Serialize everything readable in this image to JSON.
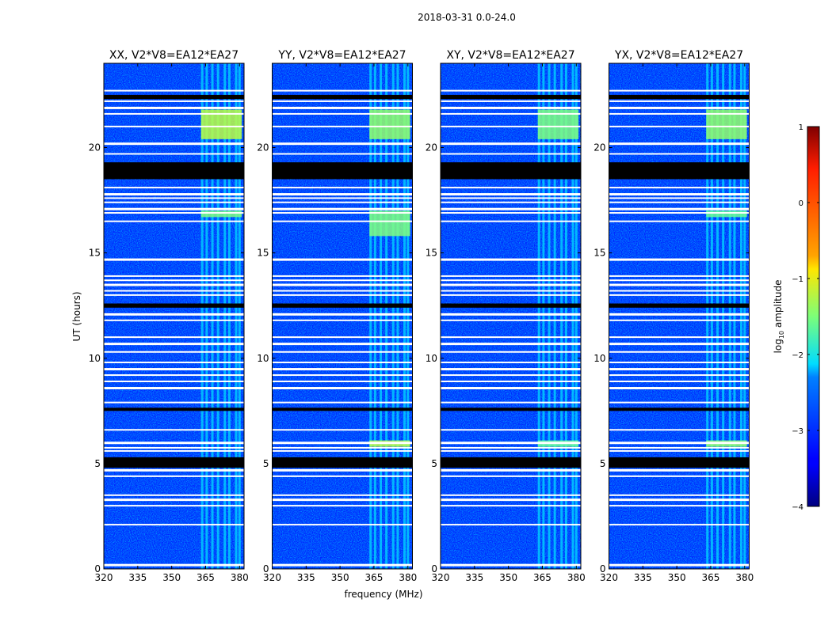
{
  "chart_data": {
    "type": "heatmap",
    "suptitle": "2018-03-31 0.0-24.0",
    "xlabel": "frequency (MHz)",
    "ylabel": "UT (hours)",
    "xlim": [
      320,
      382
    ],
    "ylim": [
      0,
      24
    ],
    "xticks": [
      320,
      335,
      350,
      365,
      380
    ],
    "yticks": [
      0,
      5,
      10,
      15,
      20
    ],
    "panels": [
      {
        "title": "XX, V2*V8=EA12*EA27",
        "pol": "XX"
      },
      {
        "title": "YY, V2*V8=EA12*EA27",
        "pol": "YY"
      },
      {
        "title": "XY, V2*V8=EA12*EA27",
        "pol": "XY"
      },
      {
        "title": "YX, V2*V8=EA12*EA27",
        "pol": "YX"
      }
    ],
    "colorbar": {
      "label": "log10 amplitude",
      "label_base": "log",
      "label_sub": "10",
      "label_rest": " amplitude",
      "vmin": -4,
      "vmax": 1,
      "ticks": [
        -4,
        -3,
        -2,
        -1,
        0,
        1
      ],
      "cmap": "jet"
    },
    "background_level": -3.2,
    "flagged_blocks_ut": [
      [
        4.8,
        5.3
      ],
      [
        7.5,
        7.65
      ],
      [
        12.4,
        12.6
      ],
      [
        18.5,
        19.3
      ],
      [
        22.3,
        22.5
      ]
    ],
    "flagged_lines_ut": [
      0.2,
      2.1,
      3.0,
      3.3,
      3.5,
      4.4,
      4.7,
      5.6,
      5.75,
      6.0,
      6.6,
      7.9,
      8.6,
      8.9,
      9.2,
      9.5,
      9.8,
      10.3,
      10.7,
      11.0,
      11.8,
      12.1,
      13.0,
      13.2,
      13.5,
      13.7,
      13.9,
      14.7,
      16.5,
      16.9,
      17.1,
      17.4,
      17.6,
      17.8,
      18.1,
      19.7,
      20.2,
      21.0,
      21.6,
      21.9,
      22.2,
      22.7
    ],
    "rfi_channels_mhz": [
      363.5,
      365.5,
      368,
      370.5,
      373.5,
      375.5,
      378.5,
      380
    ],
    "rfi_hotspots": [
      {
        "pol": "XX",
        "mhz": [
          363,
          381
        ],
        "ut": [
          20.4,
          21.8
        ],
        "level": -1.2
      },
      {
        "pol": "XX",
        "mhz": [
          363,
          381
        ],
        "ut": [
          16.7,
          17.0
        ],
        "level": -1.5
      },
      {
        "pol": "YY",
        "mhz": [
          363,
          381
        ],
        "ut": [
          20.4,
          21.8
        ],
        "level": -1.4
      },
      {
        "pol": "YY",
        "mhz": [
          363,
          381
        ],
        "ut": [
          15.8,
          17.0
        ],
        "level": -1.5
      },
      {
        "pol": "YY",
        "mhz": [
          363,
          381
        ],
        "ut": [
          5.8,
          6.1
        ],
        "level": -1.2
      },
      {
        "pol": "XY",
        "mhz": [
          363,
          381
        ],
        "ut": [
          20.4,
          21.8
        ],
        "level": -1.5
      },
      {
        "pol": "XY",
        "mhz": [
          363,
          381
        ],
        "ut": [
          5.8,
          6.1
        ],
        "level": -1.6
      },
      {
        "pol": "YX",
        "mhz": [
          363,
          381
        ],
        "ut": [
          20.4,
          21.8
        ],
        "level": -1.4
      },
      {
        "pol": "YX",
        "mhz": [
          363,
          381
        ],
        "ut": [
          5.8,
          6.1
        ],
        "level": -1.4
      },
      {
        "pol": "YX",
        "mhz": [
          363,
          381
        ],
        "ut": [
          16.7,
          17.0
        ],
        "level": -1.6
      }
    ]
  }
}
